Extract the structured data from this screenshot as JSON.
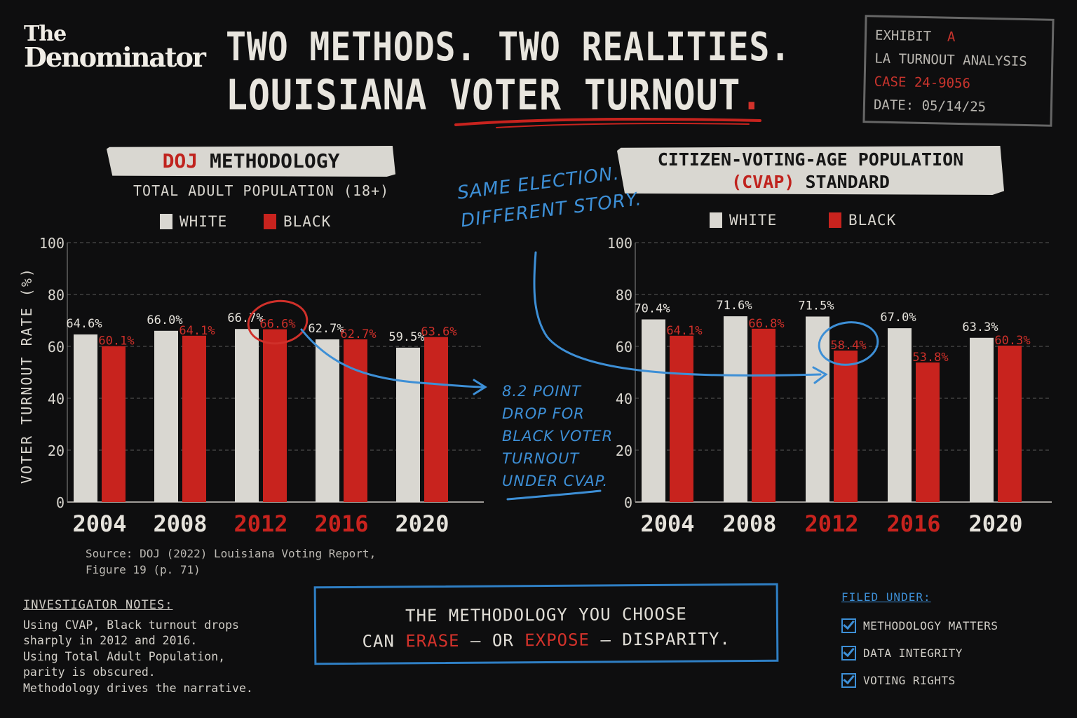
{
  "brand": {
    "line1": "The",
    "line2": "Denominator"
  },
  "headline": {
    "line1": "TWO METHODS. TWO REALITIES.",
    "line2": "LOUISIANA VOTER TURNOUT",
    "period": "."
  },
  "exhibit": {
    "label": "EXHIBIT",
    "letter": "A",
    "analysis": "LA TURNOUT ANALYSIS",
    "case": "CASE 24-9056",
    "date": "DATE: 05/14/25"
  },
  "left_panel": {
    "title_red": "DOJ",
    "title_rest": " METHODOLOGY",
    "subtitle": "TOTAL ADULT POPULATION (18+)",
    "legend": [
      "WHITE",
      "BLACK"
    ],
    "source": "Source: DOJ (2022) Louisiana Voting Report,\nFigure 19 (p. 71)"
  },
  "right_panel": {
    "title_line1": "CITIZEN-VOTING-AGE POPULATION",
    "title_red": "(CVAP)",
    "title_rest": " STANDARD",
    "legend": [
      "WHITE",
      "BLACK"
    ]
  },
  "y_axis_label": "VOTER TURNOUT RATE (%)",
  "annotations": {
    "top": [
      "SAME ELECTION.",
      "DIFFERENT STORY."
    ],
    "middle": [
      "8.2 POINT",
      "DROP FOR",
      "BLACK VOTER",
      "TURNOUT",
      "UNDER CVAP."
    ]
  },
  "notes": {
    "title": "INVESTIGATOR NOTES:",
    "lines": [
      "Using CVAP, Black turnout drops",
      "sharply in 2012 and 2016.",
      "Using Total Adult Population,",
      "parity is obscured.",
      "Methodology drives the narrative."
    ]
  },
  "callout": {
    "line1": "THE METHODOLOGY YOU CHOOSE",
    "line2_a": "CAN ",
    "line2_erase": "ERASE",
    "line2_b": " — OR ",
    "line2_expose": "EXPOSE",
    "line2_c": " — DISPARITY."
  },
  "filed": {
    "title": "FILED UNDER:",
    "items": [
      "METHODOLOGY MATTERS",
      "DATA INTEGRITY",
      "VOTING RIGHTS"
    ]
  },
  "colors": {
    "white_bar": "#d9d7d1",
    "black_bar": "#c8231e",
    "accent_blue": "#3d8fd6",
    "background": "#0e0e0f"
  },
  "chart_data": [
    {
      "type": "bar",
      "title": "DOJ METHODOLOGY",
      "subtitle": "TOTAL ADULT POPULATION (18+)",
      "categories": [
        "2004",
        "2008",
        "2012",
        "2016",
        "2020"
      ],
      "highlight_categories": [
        "2012",
        "2016"
      ],
      "series": [
        {
          "name": "WHITE",
          "values": [
            64.6,
            66.0,
            66.7,
            62.7,
            59.5
          ],
          "labels": [
            "64.6%",
            "66.0%",
            "66.7%",
            "62.7%",
            "59.5%"
          ],
          "color": "#d9d7d1"
        },
        {
          "name": "BLACK",
          "values": [
            60.1,
            64.1,
            66.6,
            62.7,
            63.6
          ],
          "labels": [
            "60.1%",
            "64.1%",
            "66.6%",
            "62.7%",
            "63.6%"
          ],
          "color": "#c8231e"
        }
      ],
      "ylabel": "VOTER TURNOUT RATE (%)",
      "ylim": [
        0,
        100
      ],
      "yticks": [
        0,
        20,
        40,
        60,
        80,
        100
      ],
      "grid": true,
      "legend": "top",
      "circled": {
        "series": 1,
        "index": 2
      }
    },
    {
      "type": "bar",
      "title": "CITIZEN-VOTING-AGE POPULATION (CVAP) STANDARD",
      "categories": [
        "2004",
        "2008",
        "2012",
        "2016",
        "2020"
      ],
      "highlight_categories": [
        "2012",
        "2016"
      ],
      "series": [
        {
          "name": "WHITE",
          "values": [
            70.4,
            71.6,
            71.5,
            67.0,
            63.3
          ],
          "labels": [
            "70.4%",
            "71.6%",
            "71.5%",
            "67.0%",
            "63.3%"
          ],
          "color": "#d9d7d1"
        },
        {
          "name": "BLACK",
          "values": [
            64.1,
            66.8,
            58.4,
            53.8,
            60.3
          ],
          "labels": [
            "64.1%",
            "66.8%",
            "58.4%",
            "53.8%",
            "60.3%"
          ],
          "color": "#c8231e"
        }
      ],
      "ylim": [
        0,
        100
      ],
      "yticks": [
        0,
        20,
        40,
        60,
        80,
        100
      ],
      "grid": true,
      "legend": "top",
      "circled": {
        "series": 1,
        "index": 2
      }
    }
  ]
}
